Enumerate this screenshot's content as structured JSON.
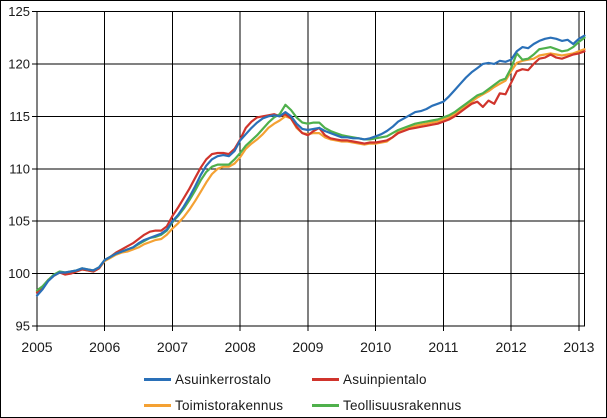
{
  "figure": {
    "background": "#ffffff",
    "border_color": "#000000",
    "axis_color": "#000000",
    "text_color": "#1a1a1a"
  },
  "chart_data": {
    "type": "line",
    "title": "",
    "x_interval": "monthly",
    "x_period_start": "2005-01",
    "x_period_end": "2013-02",
    "xtick_labels": [
      "2005",
      "2006",
      "2007",
      "2008",
      "2009",
      "2010",
      "2011",
      "2012",
      "2013"
    ],
    "ytick_values": [
      95,
      100,
      105,
      110,
      115,
      120,
      125
    ],
    "ylim": [
      95,
      125
    ],
    "grid": true,
    "legend_position": "bottom",
    "series": [
      {
        "name": "Asuinkerrostalo",
        "color": "#2a70b8",
        "values": [
          97.9,
          98.5,
          99.3,
          99.8,
          100.1,
          100.1,
          100.2,
          100.3,
          100.5,
          100.4,
          100.3,
          100.6,
          101.3,
          101.6,
          101.9,
          102.1,
          102.3,
          102.5,
          102.9,
          103.2,
          103.4,
          103.6,
          103.8,
          104.2,
          105.0,
          105.6,
          106.4,
          107.3,
          108.3,
          109.4,
          110.3,
          110.9,
          111.2,
          111.3,
          111.2,
          111.7,
          112.7,
          113.3,
          113.9,
          114.4,
          114.8,
          115.0,
          115.1,
          115.0,
          115.4,
          115.0,
          114.3,
          113.8,
          113.7,
          113.8,
          113.9,
          113.6,
          113.4,
          113.2,
          113.0,
          113.0,
          112.9,
          112.9,
          112.8,
          112.9,
          113.1,
          113.3,
          113.6,
          114.0,
          114.5,
          114.8,
          115.1,
          115.4,
          115.5,
          115.7,
          116.0,
          116.2,
          116.4,
          116.9,
          117.5,
          118.1,
          118.7,
          119.2,
          119.6,
          120.0,
          120.1,
          120.0,
          120.3,
          120.2,
          120.4,
          121.2,
          121.6,
          121.5,
          121.9,
          122.2,
          122.4,
          122.5,
          122.4,
          122.2,
          122.3,
          121.9,
          122.4,
          122.7
        ]
      },
      {
        "name": "Asuinpientalo",
        "color": "#d0342c",
        "values": [
          98.2,
          98.7,
          99.4,
          99.8,
          100.1,
          99.9,
          100.0,
          100.2,
          100.4,
          100.3,
          100.2,
          100.5,
          101.3,
          101.6,
          102.0,
          102.3,
          102.6,
          102.9,
          103.3,
          103.7,
          104.0,
          104.1,
          104.1,
          104.5,
          105.5,
          106.3,
          107.2,
          108.1,
          109.1,
          110.1,
          110.9,
          111.4,
          111.5,
          111.5,
          111.4,
          111.9,
          112.8,
          113.9,
          114.5,
          114.9,
          115.0,
          115.1,
          115.2,
          115.0,
          115.2,
          114.8,
          114.0,
          113.4,
          113.2,
          113.6,
          113.9,
          113.2,
          112.9,
          112.8,
          112.7,
          112.7,
          112.6,
          112.5,
          112.4,
          112.5,
          112.5,
          112.6,
          112.7,
          113.0,
          113.4,
          113.6,
          113.8,
          113.9,
          114.0,
          114.1,
          114.2,
          114.3,
          114.5,
          114.7,
          115.0,
          115.4,
          115.8,
          116.2,
          116.4,
          115.9,
          116.5,
          116.2,
          117.2,
          117.1,
          118.2,
          119.3,
          119.5,
          119.4,
          120.0,
          120.5,
          120.6,
          120.9,
          120.6,
          120.5,
          120.7,
          120.9,
          121.0,
          121.2
        ]
      },
      {
        "name": "Toimistorakennus",
        "color": "#f4a133",
        "values": [
          98.3,
          98.7,
          99.4,
          99.8,
          100.1,
          100.0,
          100.1,
          100.2,
          100.4,
          100.3,
          100.2,
          100.5,
          101.2,
          101.5,
          101.8,
          102.0,
          102.1,
          102.3,
          102.5,
          102.8,
          103.0,
          103.2,
          103.3,
          103.7,
          104.3,
          104.8,
          105.4,
          106.1,
          106.9,
          107.8,
          108.7,
          109.5,
          110.0,
          110.2,
          110.2,
          110.5,
          111.1,
          111.9,
          112.4,
          112.8,
          113.3,
          113.9,
          114.3,
          114.6,
          115.0,
          114.8,
          113.9,
          113.4,
          113.3,
          113.4,
          113.4,
          113.0,
          112.8,
          112.7,
          112.6,
          112.6,
          112.5,
          112.4,
          112.3,
          112.4,
          112.4,
          112.5,
          112.6,
          113.0,
          113.5,
          113.7,
          113.9,
          114.1,
          114.2,
          114.3,
          114.4,
          114.5,
          114.7,
          114.9,
          115.2,
          115.6,
          116.0,
          116.4,
          116.8,
          117.1,
          117.4,
          117.8,
          118.1,
          118.4,
          119.3,
          120.1,
          120.3,
          120.4,
          120.5,
          120.8,
          120.9,
          121.0,
          120.9,
          120.8,
          120.9,
          121.0,
          121.2,
          121.4
        ]
      },
      {
        "name": "Teollisuusrakennus",
        "color": "#4fb04c",
        "values": [
          98.4,
          98.8,
          99.4,
          99.9,
          100.2,
          100.1,
          100.2,
          100.3,
          100.5,
          100.4,
          100.3,
          100.6,
          101.3,
          101.6,
          101.9,
          102.1,
          102.3,
          102.5,
          102.8,
          103.1,
          103.4,
          103.5,
          103.7,
          104.1,
          104.9,
          105.5,
          106.2,
          107.0,
          107.9,
          108.9,
          109.7,
          110.2,
          110.4,
          110.4,
          110.4,
          110.9,
          111.5,
          112.2,
          112.7,
          113.2,
          113.8,
          114.4,
          114.9,
          115.2,
          116.1,
          115.6,
          114.9,
          114.4,
          114.3,
          114.4,
          114.4,
          113.9,
          113.6,
          113.4,
          113.2,
          113.1,
          113.0,
          112.9,
          112.8,
          112.8,
          112.9,
          113.0,
          113.1,
          113.4,
          113.7,
          113.9,
          114.1,
          114.3,
          114.4,
          114.5,
          114.6,
          114.7,
          114.9,
          115.1,
          115.4,
          115.8,
          116.2,
          116.6,
          117.0,
          117.2,
          117.6,
          118.0,
          118.4,
          118.6,
          119.6,
          121.0,
          120.4,
          120.5,
          120.9,
          121.4,
          121.5,
          121.6,
          121.4,
          121.2,
          121.3,
          121.6,
          122.1,
          122.5
        ]
      }
    ]
  }
}
